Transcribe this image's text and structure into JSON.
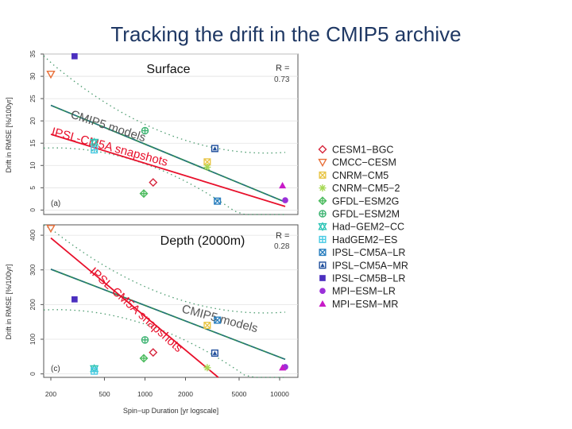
{
  "slide": {
    "title": "Tracking the drift in the CMIP5 archive"
  },
  "legend": {
    "entries": [
      {
        "name": "CESM1−BGC",
        "color": "#d7263d",
        "marker": "diamond-open"
      },
      {
        "name": "CMCC−CESM",
        "color": "#e8703a",
        "marker": "triangle-down-open"
      },
      {
        "name": "CNRM−CM5",
        "color": "#e8c547",
        "marker": "square-x"
      },
      {
        "name": "CNRM−CM5−2",
        "color": "#a6d854",
        "marker": "star"
      },
      {
        "name": "GFDL−ESM2G",
        "color": "#4dbb5f",
        "marker": "diamond-plus"
      },
      {
        "name": "GFDL−ESM2M",
        "color": "#3cb371",
        "marker": "circle-plus"
      },
      {
        "name": "Had−GEM2−CC",
        "color": "#2ec4b6",
        "marker": "triangle-star"
      },
      {
        "name": "HadGEM2−ES",
        "color": "#48cae4",
        "marker": "square-plus"
      },
      {
        "name": "IPSL−CM5A−LR",
        "color": "#2a7fbf",
        "marker": "square-x"
      },
      {
        "name": "IPSL−CM5A−MR",
        "color": "#1f4e9c",
        "marker": "square-triangle"
      },
      {
        "name": "IPSL−CM5B−LR",
        "color": "#4b2fbf",
        "marker": "square-filled"
      },
      {
        "name": "MPI−ESM−LR",
        "color": "#9b30d9",
        "marker": "circle-filled"
      },
      {
        "name": "MPI−ESM−MR",
        "color": "#c71ac7",
        "marker": "triangle-filled"
      }
    ]
  },
  "chart_data": [
    {
      "type": "scatter",
      "title": "Surface",
      "panel_label": "(a)",
      "r_label": "R =",
      "r_value": "0.73",
      "xlabel": "",
      "ylabel": "Drift in RMSE [%/100yr]",
      "x_scale": "log",
      "xlim": [
        180,
        13000
      ],
      "ylim": [
        -1,
        35
      ],
      "y_ticks": [
        "0",
        "5",
        "10",
        "15",
        "20",
        "25",
        "30",
        "35"
      ],
      "points": [
        {
          "model": "CESM1−BGC",
          "x": 1150,
          "y": 6.2
        },
        {
          "model": "CMCC−CESM",
          "x": 200,
          "y": 30.5
        },
        {
          "model": "CNRM−CM5",
          "x": 2900,
          "y": 10.8
        },
        {
          "model": "CNRM−CM5−2",
          "x": 2900,
          "y": 9.6
        },
        {
          "model": "GFDL−ESM2G",
          "x": 980,
          "y": 3.7
        },
        {
          "model": "GFDL−ESM2M",
          "x": 1000,
          "y": 17.8
        },
        {
          "model": "Had−GEM2−CC",
          "x": 420,
          "y": 15.2
        },
        {
          "model": "HadGEM2−ES",
          "x": 420,
          "y": 13.5
        },
        {
          "model": "IPSL−CM5A−LR",
          "x": 3450,
          "y": 2.0
        },
        {
          "model": "IPSL−CM5A−MR",
          "x": 3300,
          "y": 13.8
        },
        {
          "model": "IPSL−CM5B−LR",
          "x": 300,
          "y": 34.5
        },
        {
          "model": "MPI−ESM−LR",
          "x": 11000,
          "y": 2.2
        },
        {
          "model": "MPI−ESM−MR",
          "x": 10500,
          "y": 5.5
        }
      ],
      "fits": [
        {
          "label": "CMIP5 models",
          "color": "#2e8b57",
          "from": [
            200,
            23.5
          ],
          "to": [
            11000,
            1.8
          ]
        },
        {
          "label": "IPSL-CM5A snapshots",
          "color": "#e8102b",
          "from": [
            200,
            17.0
          ],
          "to": [
            11000,
            0.8
          ]
        }
      ]
    },
    {
      "type": "scatter",
      "title": "Depth (2000m)",
      "panel_label": "(c)",
      "r_label": "R =",
      "r_value": "0.28",
      "xlabel": "Spin−up Duration [yr logscale]",
      "ylabel": "Drift in RMSE [%/100yr]",
      "x_scale": "log",
      "xlim": [
        180,
        13000
      ],
      "ylim": [
        -10,
        430
      ],
      "y_ticks": [
        "0",
        "100",
        "200",
        "300",
        "400"
      ],
      "x_ticks": [
        "200",
        "500",
        "1000",
        "2000",
        "5000",
        "10000"
      ],
      "x_tick_values": [
        200,
        500,
        1000,
        2000,
        5000,
        10000
      ],
      "points": [
        {
          "model": "CESM1−BGC",
          "x": 1150,
          "y": 62
        },
        {
          "model": "CMCC−CESM",
          "x": 200,
          "y": 420
        },
        {
          "model": "CNRM−CM5",
          "x": 2900,
          "y": 140
        },
        {
          "model": "CNRM−CM5−2",
          "x": 2900,
          "y": 18
        },
        {
          "model": "GFDL−ESM2G",
          "x": 980,
          "y": 45
        },
        {
          "model": "GFDL−ESM2M",
          "x": 1000,
          "y": 98
        },
        {
          "model": "Had−GEM2−CC",
          "x": 420,
          "y": 15
        },
        {
          "model": "HadGEM2−ES",
          "x": 420,
          "y": 8
        },
        {
          "model": "IPSL−CM5A−LR",
          "x": 3450,
          "y": 155
        },
        {
          "model": "IPSL−CM5A−MR",
          "x": 3300,
          "y": 60
        },
        {
          "model": "IPSL−CM5B−LR",
          "x": 300,
          "y": 215
        },
        {
          "model": "MPI−ESM−LR",
          "x": 11000,
          "y": 20
        },
        {
          "model": "MPI−ESM−MR",
          "x": 10500,
          "y": 18
        }
      ],
      "fits": [
        {
          "label": "CMIP5 models",
          "color": "#2e8b57",
          "from": [
            200,
            302
          ],
          "to": [
            11000,
            42
          ]
        },
        {
          "label": "IPSL-CM5A snapshots",
          "color": "#e8102b",
          "from": [
            200,
            392
          ],
          "to": [
            3500,
            -10
          ]
        }
      ]
    }
  ]
}
